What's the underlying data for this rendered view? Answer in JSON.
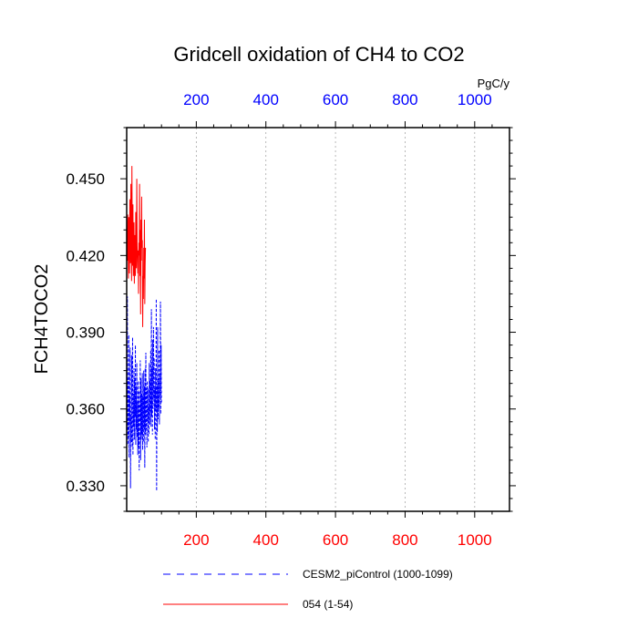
{
  "chart_data": {
    "type": "line",
    "title": "Gridcell oxidation of CH4 to CO2",
    "ylabel": "FCH4TOCO2",
    "units": "PgC/y",
    "xlim": [
      0,
      1100
    ],
    "ylim": [
      0.32,
      0.47
    ],
    "x_ticks": [
      200,
      400,
      600,
      800,
      1000
    ],
    "x_tick_labels": [
      "200",
      "400",
      "600",
      "800",
      "1000"
    ],
    "y_ticks": [
      0.33,
      0.36,
      0.39,
      0.42,
      0.45
    ],
    "y_tick_labels": [
      "0.330",
      "0.360",
      "0.390",
      "0.420",
      "0.450"
    ],
    "top_axis_color": "#0000ff",
    "bottom_axis_color": "#ff0000",
    "grid": "vertical dotted",
    "series": [
      {
        "name": "CESM2_piControl (1000-1099)",
        "color": "#0000ff",
        "style": "dashed",
        "x": [
          1,
          2,
          3,
          4,
          5,
          6,
          7,
          8,
          9,
          10,
          11,
          12,
          13,
          14,
          15,
          16,
          17,
          18,
          19,
          20,
          21,
          22,
          23,
          24,
          25,
          26,
          27,
          28,
          29,
          30,
          31,
          32,
          33,
          34,
          35,
          36,
          37,
          38,
          39,
          40,
          41,
          42,
          43,
          44,
          45,
          46,
          47,
          48,
          49,
          50,
          51,
          52,
          53,
          54,
          55,
          56,
          57,
          58,
          59,
          60,
          61,
          62,
          63,
          64,
          65,
          66,
          67,
          68,
          69,
          70,
          71,
          72,
          73,
          74,
          75,
          76,
          77,
          78,
          79,
          80,
          81,
          82,
          83,
          84,
          85,
          86,
          87,
          88,
          89,
          90,
          91,
          92,
          93,
          94,
          95,
          96,
          97,
          98,
          99,
          100
        ],
        "y": [
          0.352,
          0.404,
          0.346,
          0.372,
          0.349,
          0.389,
          0.341,
          0.365,
          0.354,
          0.384,
          0.329,
          0.358,
          0.347,
          0.381,
          0.351,
          0.345,
          0.388,
          0.342,
          0.366,
          0.353,
          0.376,
          0.348,
          0.372,
          0.357,
          0.385,
          0.346,
          0.369,
          0.352,
          0.378,
          0.349,
          0.363,
          0.342,
          0.371,
          0.345,
          0.367,
          0.336,
          0.362,
          0.355,
          0.379,
          0.34,
          0.372,
          0.348,
          0.366,
          0.35,
          0.374,
          0.344,
          0.365,
          0.347,
          0.375,
          0.352,
          0.369,
          0.337,
          0.376,
          0.35,
          0.382,
          0.352,
          0.368,
          0.345,
          0.371,
          0.355,
          0.368,
          0.347,
          0.361,
          0.35,
          0.378,
          0.354,
          0.371,
          0.359,
          0.383,
          0.353,
          0.399,
          0.357,
          0.376,
          0.35,
          0.387,
          0.36,
          0.392,
          0.364,
          0.38,
          0.352,
          0.368,
          0.348,
          0.376,
          0.359,
          0.403,
          0.328,
          0.369,
          0.351,
          0.392,
          0.356,
          0.372,
          0.36,
          0.383,
          0.354,
          0.374,
          0.365,
          0.402,
          0.358,
          0.385,
          0.362
        ]
      },
      {
        "name": "054 (1-54)",
        "color": "#ff0000",
        "style": "solid",
        "x": [
          1,
          2,
          3,
          4,
          5,
          6,
          7,
          8,
          9,
          10,
          11,
          12,
          13,
          14,
          15,
          16,
          17,
          18,
          19,
          20,
          21,
          22,
          23,
          24,
          25,
          26,
          27,
          28,
          29,
          30,
          31,
          32,
          33,
          34,
          35,
          36,
          37,
          38,
          39,
          40,
          41,
          42,
          43,
          44,
          45,
          46,
          47,
          48,
          49,
          50,
          51,
          52,
          53,
          54
        ],
        "y": [
          0.431,
          0.418,
          0.436,
          0.427,
          0.411,
          0.435,
          0.423,
          0.413,
          0.442,
          0.428,
          0.417,
          0.448,
          0.422,
          0.41,
          0.455,
          0.426,
          0.416,
          0.44,
          0.412,
          0.421,
          0.433,
          0.409,
          0.428,
          0.418,
          0.412,
          0.437,
          0.42,
          0.415,
          0.45,
          0.424,
          0.418,
          0.413,
          0.422,
          0.405,
          0.425,
          0.42,
          0.448,
          0.412,
          0.43,
          0.397,
          0.434,
          0.423,
          0.443,
          0.418,
          0.426,
          0.392,
          0.412,
          0.403,
          0.423,
          0.411,
          0.434,
          0.401,
          0.416,
          0.423
        ]
      }
    ]
  }
}
